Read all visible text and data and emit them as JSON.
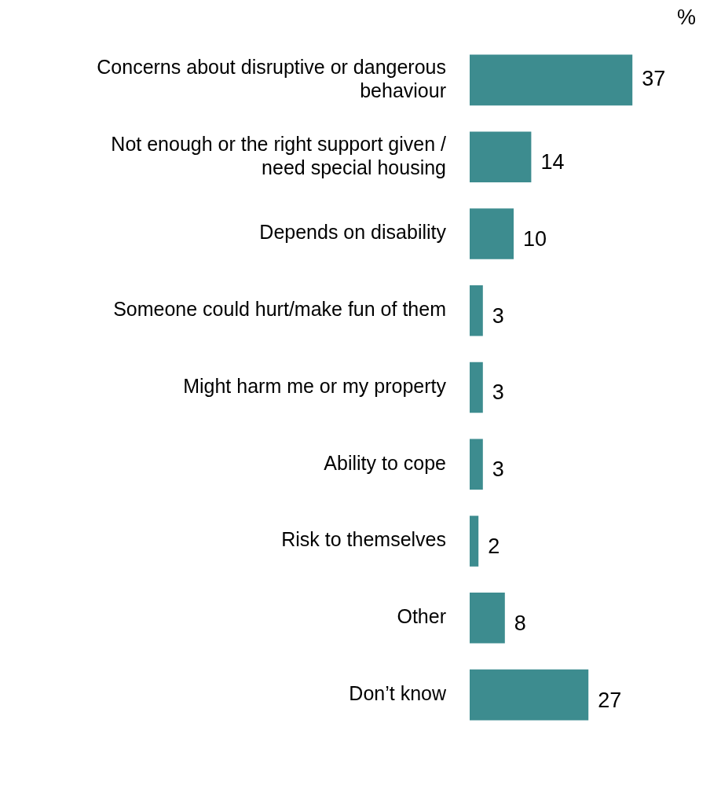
{
  "chart_data": {
    "type": "bar",
    "orientation": "horizontal",
    "categories": [
      "Concerns about disruptive or dangerous behaviour",
      "Not enough or the right support given / need special housing",
      "Depends on disability",
      "Someone could hurt/make fun of them",
      "Might harm me or my property",
      "Ability to cope",
      "Risk to themselves",
      "Other",
      "Don’t know"
    ],
    "values": [
      37,
      14,
      10,
      3,
      3,
      3,
      2,
      8,
      27
    ],
    "color": "#3d8c8f",
    "data_labels": true,
    "grid": false,
    "legend": false,
    "annotations": [
      "%"
    ]
  }
}
